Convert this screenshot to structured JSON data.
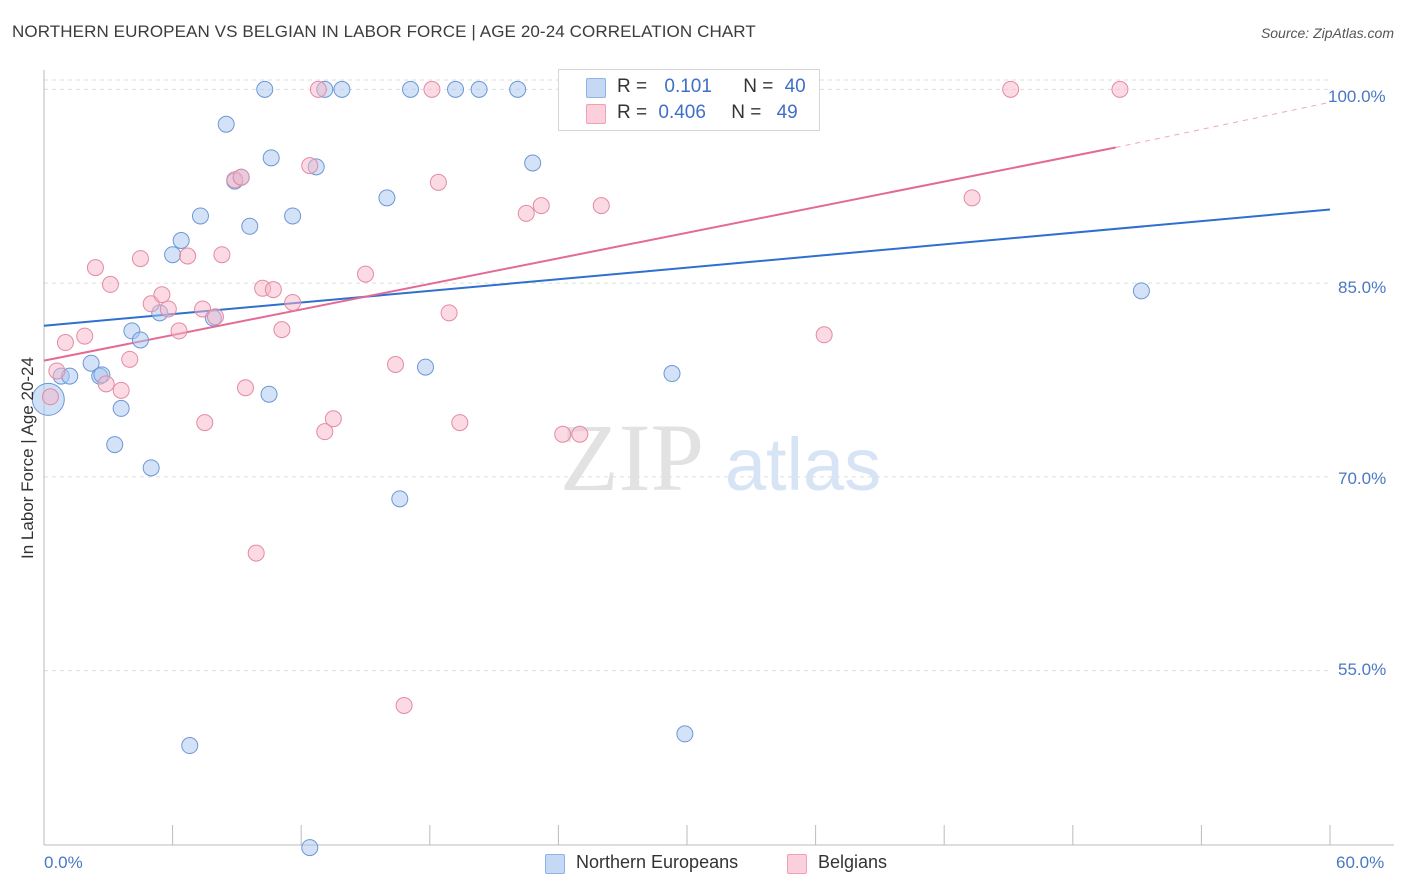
{
  "title": "NORTHERN EUROPEAN VS BELGIAN IN LABOR FORCE | AGE 20-24 CORRELATION CHART",
  "source": "Source: ZipAtlas.com",
  "watermark": {
    "zip": "ZIP",
    "atlas": "atlas"
  },
  "legend": {
    "rows": [
      {
        "r_label": "R =",
        "r_value": "0.101",
        "n_label": "N =",
        "n_value": "40",
        "color": "#a8c6f0"
      },
      {
        "r_label": "R =",
        "r_value": "0.406",
        "n_label": "N =",
        "n_value": "49",
        "color": "#f7b6c8"
      }
    ]
  },
  "bottom_legend": [
    "Northern Europeans",
    "Belgians"
  ],
  "axes": {
    "ylabel": "In Labor Force | Age 20-24",
    "x_ticks": [
      "0.0%",
      "60.0%"
    ],
    "y_ticks": [
      "100.0%",
      "85.0%",
      "70.0%",
      "55.0%"
    ]
  },
  "chart_data": {
    "type": "scatter",
    "xlabel": "",
    "ylabel": "In Labor Force | Age 20-24",
    "xlim": [
      0,
      60
    ],
    "ylim": [
      41.5,
      101.5
    ],
    "y_gridlines": [
      100,
      85,
      70,
      55
    ],
    "series": [
      {
        "name": "Northern Europeans",
        "color": "#a8c6f0",
        "stroke": "#6b97d6",
        "trend": {
          "x0": 0,
          "y0": 81.7,
          "x1": 60,
          "y1": 90.7
        },
        "points": [
          [
            0.2,
            76.0
          ],
          [
            0.8,
            77.8
          ],
          [
            1.2,
            77.8
          ],
          [
            2.2,
            78.8
          ],
          [
            2.6,
            77.8
          ],
          [
            2.7,
            77.9
          ],
          [
            3.3,
            72.5
          ],
          [
            3.6,
            75.3
          ],
          [
            4.1,
            81.3
          ],
          [
            4.5,
            80.6
          ],
          [
            5.0,
            70.7
          ],
          [
            5.4,
            82.7
          ],
          [
            6.0,
            87.2
          ],
          [
            6.4,
            88.3
          ],
          [
            6.8,
            49.2
          ],
          [
            7.3,
            90.2
          ],
          [
            7.9,
            82.3
          ],
          [
            8.5,
            97.3
          ],
          [
            8.9,
            92.9
          ],
          [
            9.2,
            93.2
          ],
          [
            9.6,
            89.4
          ],
          [
            10.3,
            100.0
          ],
          [
            10.5,
            76.4
          ],
          [
            10.6,
            94.7
          ],
          [
            11.6,
            90.2
          ],
          [
            12.4,
            41.3
          ],
          [
            12.7,
            94.0
          ],
          [
            13.1,
            100.0
          ],
          [
            13.9,
            100.0
          ],
          [
            16.0,
            91.6
          ],
          [
            16.6,
            68.3
          ],
          [
            17.1,
            100.0
          ],
          [
            17.8,
            78.5
          ],
          [
            19.2,
            100.0
          ],
          [
            20.3,
            100.0
          ],
          [
            22.1,
            100.0
          ],
          [
            22.8,
            94.3
          ],
          [
            29.3,
            78.0
          ],
          [
            29.9,
            50.1
          ],
          [
            51.2,
            84.4
          ]
        ]
      },
      {
        "name": "Belgians",
        "color": "#f7b6c8",
        "stroke": "#e48aa6",
        "trend": {
          "x0": 0,
          "y0": 79.0,
          "x1": 50,
          "y1": 95.5,
          "dash_to_x": 60,
          "dash_to_y": 99.0
        },
        "points": [
          [
            0.3,
            76.2
          ],
          [
            0.6,
            78.2
          ],
          [
            1.0,
            80.4
          ],
          [
            1.9,
            80.9
          ],
          [
            2.4,
            86.2
          ],
          [
            2.9,
            77.2
          ],
          [
            3.1,
            84.9
          ],
          [
            3.6,
            76.7
          ],
          [
            4.0,
            79.1
          ],
          [
            4.5,
            86.9
          ],
          [
            5.0,
            83.4
          ],
          [
            5.5,
            84.1
          ],
          [
            5.8,
            83.0
          ],
          [
            6.3,
            81.3
          ],
          [
            6.7,
            87.1
          ],
          [
            7.4,
            83.0
          ],
          [
            7.5,
            74.2
          ],
          [
            8.0,
            82.4
          ],
          [
            8.3,
            87.2
          ],
          [
            8.9,
            93.0
          ],
          [
            9.2,
            93.2
          ],
          [
            9.4,
            76.9
          ],
          [
            9.9,
            64.1
          ],
          [
            10.2,
            84.6
          ],
          [
            10.7,
            84.5
          ],
          [
            11.1,
            81.4
          ],
          [
            11.6,
            83.5
          ],
          [
            12.4,
            94.1
          ],
          [
            12.8,
            100.0
          ],
          [
            13.1,
            73.5
          ],
          [
            13.5,
            74.5
          ],
          [
            15.0,
            85.7
          ],
          [
            16.4,
            78.7
          ],
          [
            16.8,
            52.3
          ],
          [
            18.1,
            100.0
          ],
          [
            18.4,
            92.8
          ],
          [
            18.9,
            82.7
          ],
          [
            19.4,
            74.2
          ],
          [
            22.5,
            90.4
          ],
          [
            23.2,
            91.0
          ],
          [
            24.2,
            73.3
          ],
          [
            25.0,
            73.3
          ],
          [
            26.0,
            91.0
          ],
          [
            27.5,
            100.0
          ],
          [
            28.1,
            100.0
          ],
          [
            36.4,
            81.0
          ],
          [
            43.3,
            91.6
          ],
          [
            45.1,
            100.0
          ],
          [
            50.2,
            100.0
          ]
        ]
      }
    ]
  }
}
